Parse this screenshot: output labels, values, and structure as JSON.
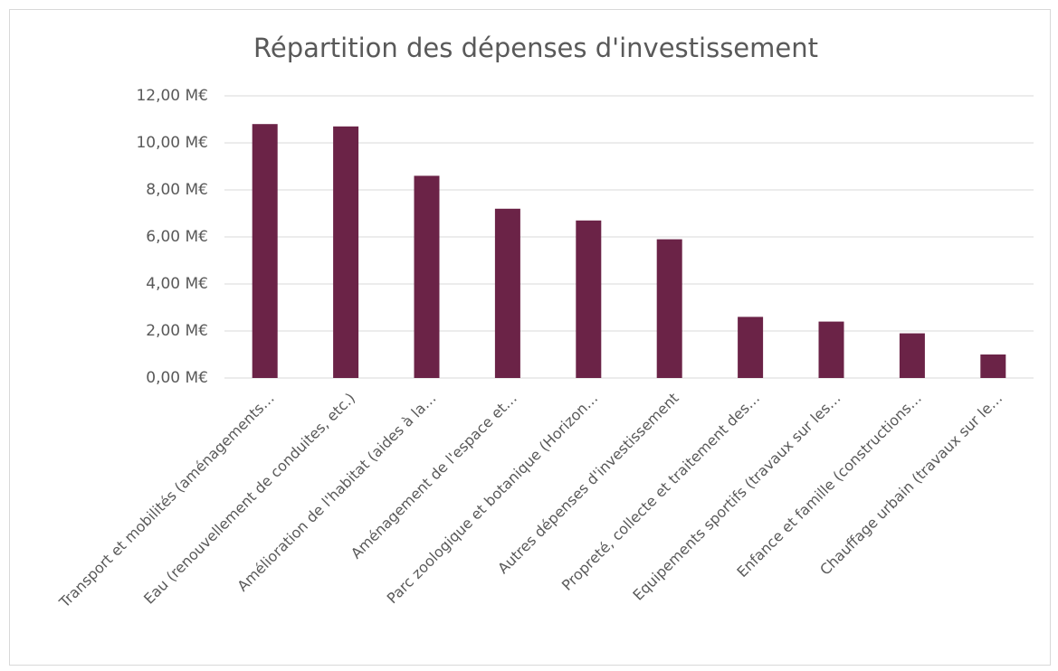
{
  "chart_data": {
    "type": "bar",
    "title": "Répartition des dépenses d'investissement",
    "categories": [
      "Transport et mobilités (aménagements…",
      "Eau (renouvellement de conduites, etc.)",
      "Amélioration de l'habitat (aides à la…",
      "Aménagement de l'espace et…",
      "Parc zoologique et botanique (Horizon…",
      "Autres dépenses d'investissement",
      "Propreté, collecte et traitement des…",
      "Equipements sportifs (travaux sur les…",
      "Enfance et famille (constructions…",
      "Chauffage urbain (travaux sur le…"
    ],
    "values": [
      10.8,
      10.7,
      8.6,
      7.2,
      6.7,
      5.9,
      2.6,
      2.4,
      1.9,
      1.0
    ],
    "color": "#6b2347",
    "ylim": [
      0,
      12
    ],
    "yticks": [
      {
        "value": 0,
        "label": "0,00 M€"
      },
      {
        "value": 2,
        "label": "2,00 M€"
      },
      {
        "value": 4,
        "label": "4,00 M€"
      },
      {
        "value": 6,
        "label": "6,00 M€"
      },
      {
        "value": 8,
        "label": "8,00 M€"
      },
      {
        "value": 10,
        "label": "10,00 M€"
      },
      {
        "value": 12,
        "label": "12,00 M€"
      }
    ],
    "grid": true
  }
}
